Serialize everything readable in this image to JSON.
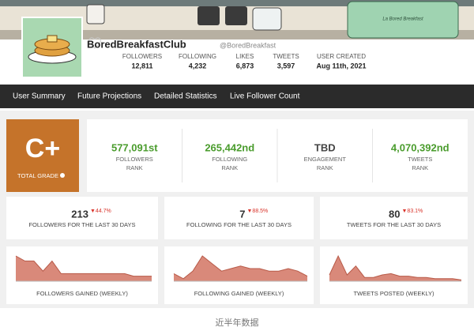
{
  "banner": {
    "text": "La Bored Breakfast"
  },
  "profile": {
    "name": "BoredBreakfastClub",
    "handle": "@BoredBreakfast",
    "stats": [
      {
        "label": "FOLLOWERS",
        "value": "12,811"
      },
      {
        "label": "FOLLOWING",
        "value": "4,232"
      },
      {
        "label": "LIKES",
        "value": "6,873"
      },
      {
        "label": "TWEETS",
        "value": "3,597"
      },
      {
        "label": "USER CREATED",
        "value": "Aug 11th, 2021"
      }
    ]
  },
  "nav": [
    "User Summary",
    "Future Projections",
    "Detailed Statistics",
    "Live Follower Count"
  ],
  "grade": {
    "value": "C+",
    "label": "TOTAL GRADE"
  },
  "ranks": [
    {
      "value": "577,091st",
      "label": "FOLLOWERS",
      "sub": "RANK"
    },
    {
      "value": "265,442nd",
      "label": "FOLLOWING",
      "sub": "RANK"
    },
    {
      "value": "TBD",
      "label": "ENGAGEMENT",
      "sub": "RANK"
    },
    {
      "value": "4,070,392nd",
      "label": "TWEETS",
      "sub": "RANK"
    }
  ],
  "summary": [
    {
      "value": "213",
      "change": "▼44.7%",
      "label": "FOLLOWERS FOR THE LAST 30 DAYS"
    },
    {
      "value": "7",
      "change": "▼88.5%",
      "label": "FOLLOWING FOR THE LAST 30 DAYS"
    },
    {
      "value": "80",
      "change": "▼83.1%",
      "label": "TWEETS FOR THE LAST 30 DAYS"
    }
  ],
  "charts": [
    {
      "label": "FOLLOWERS GAINED (WEEKLY)",
      "values": [
        10,
        8,
        8,
        4,
        8,
        3,
        3,
        3,
        3,
        3,
        3,
        3,
        3,
        2,
        2,
        2
      ]
    },
    {
      "label": "FOLLOWING GAINED (WEEKLY)",
      "values": [
        3,
        1,
        4,
        10,
        7,
        4,
        5,
        6,
        5,
        5,
        4,
        4,
        5,
        4,
        2
      ]
    },
    {
      "label": "TWEETS POSTED (WEEKLY)",
      "values": [
        5,
        20,
        5,
        12,
        3,
        3,
        5,
        6,
        4,
        4,
        3,
        3,
        2,
        2,
        2,
        1
      ]
    }
  ],
  "caption": "近半年数据"
}
